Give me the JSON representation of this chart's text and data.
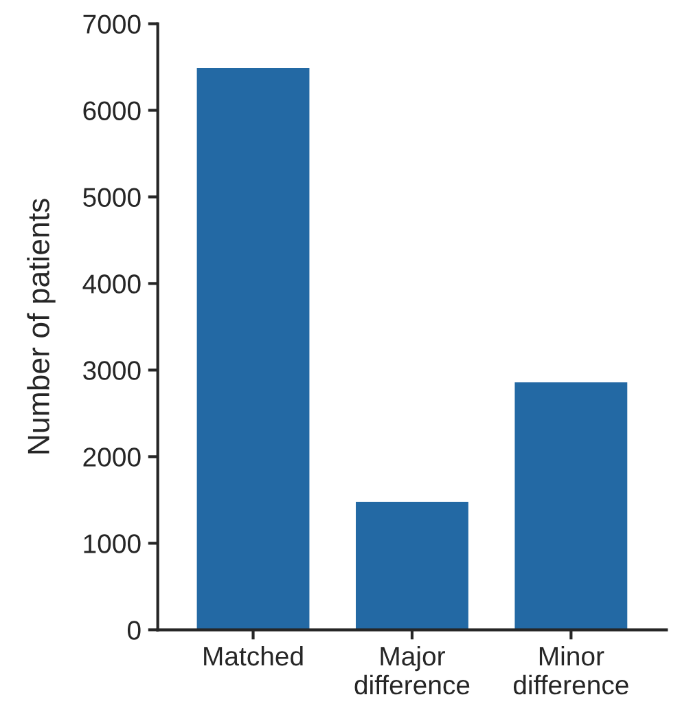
{
  "chart_data": {
    "type": "bar",
    "ylabel": "Number of patients",
    "categories": [
      "Matched",
      "Major\ndifference",
      "Minor\ndifference"
    ],
    "values": [
      6500,
      1490,
      2870
    ],
    "color": "#2369a4",
    "ylim": [
      0,
      7000
    ],
    "yticks": [
      0,
      1000,
      2000,
      3000,
      4000,
      5000,
      6000,
      7000
    ],
    "grid": false,
    "legend": false
  }
}
